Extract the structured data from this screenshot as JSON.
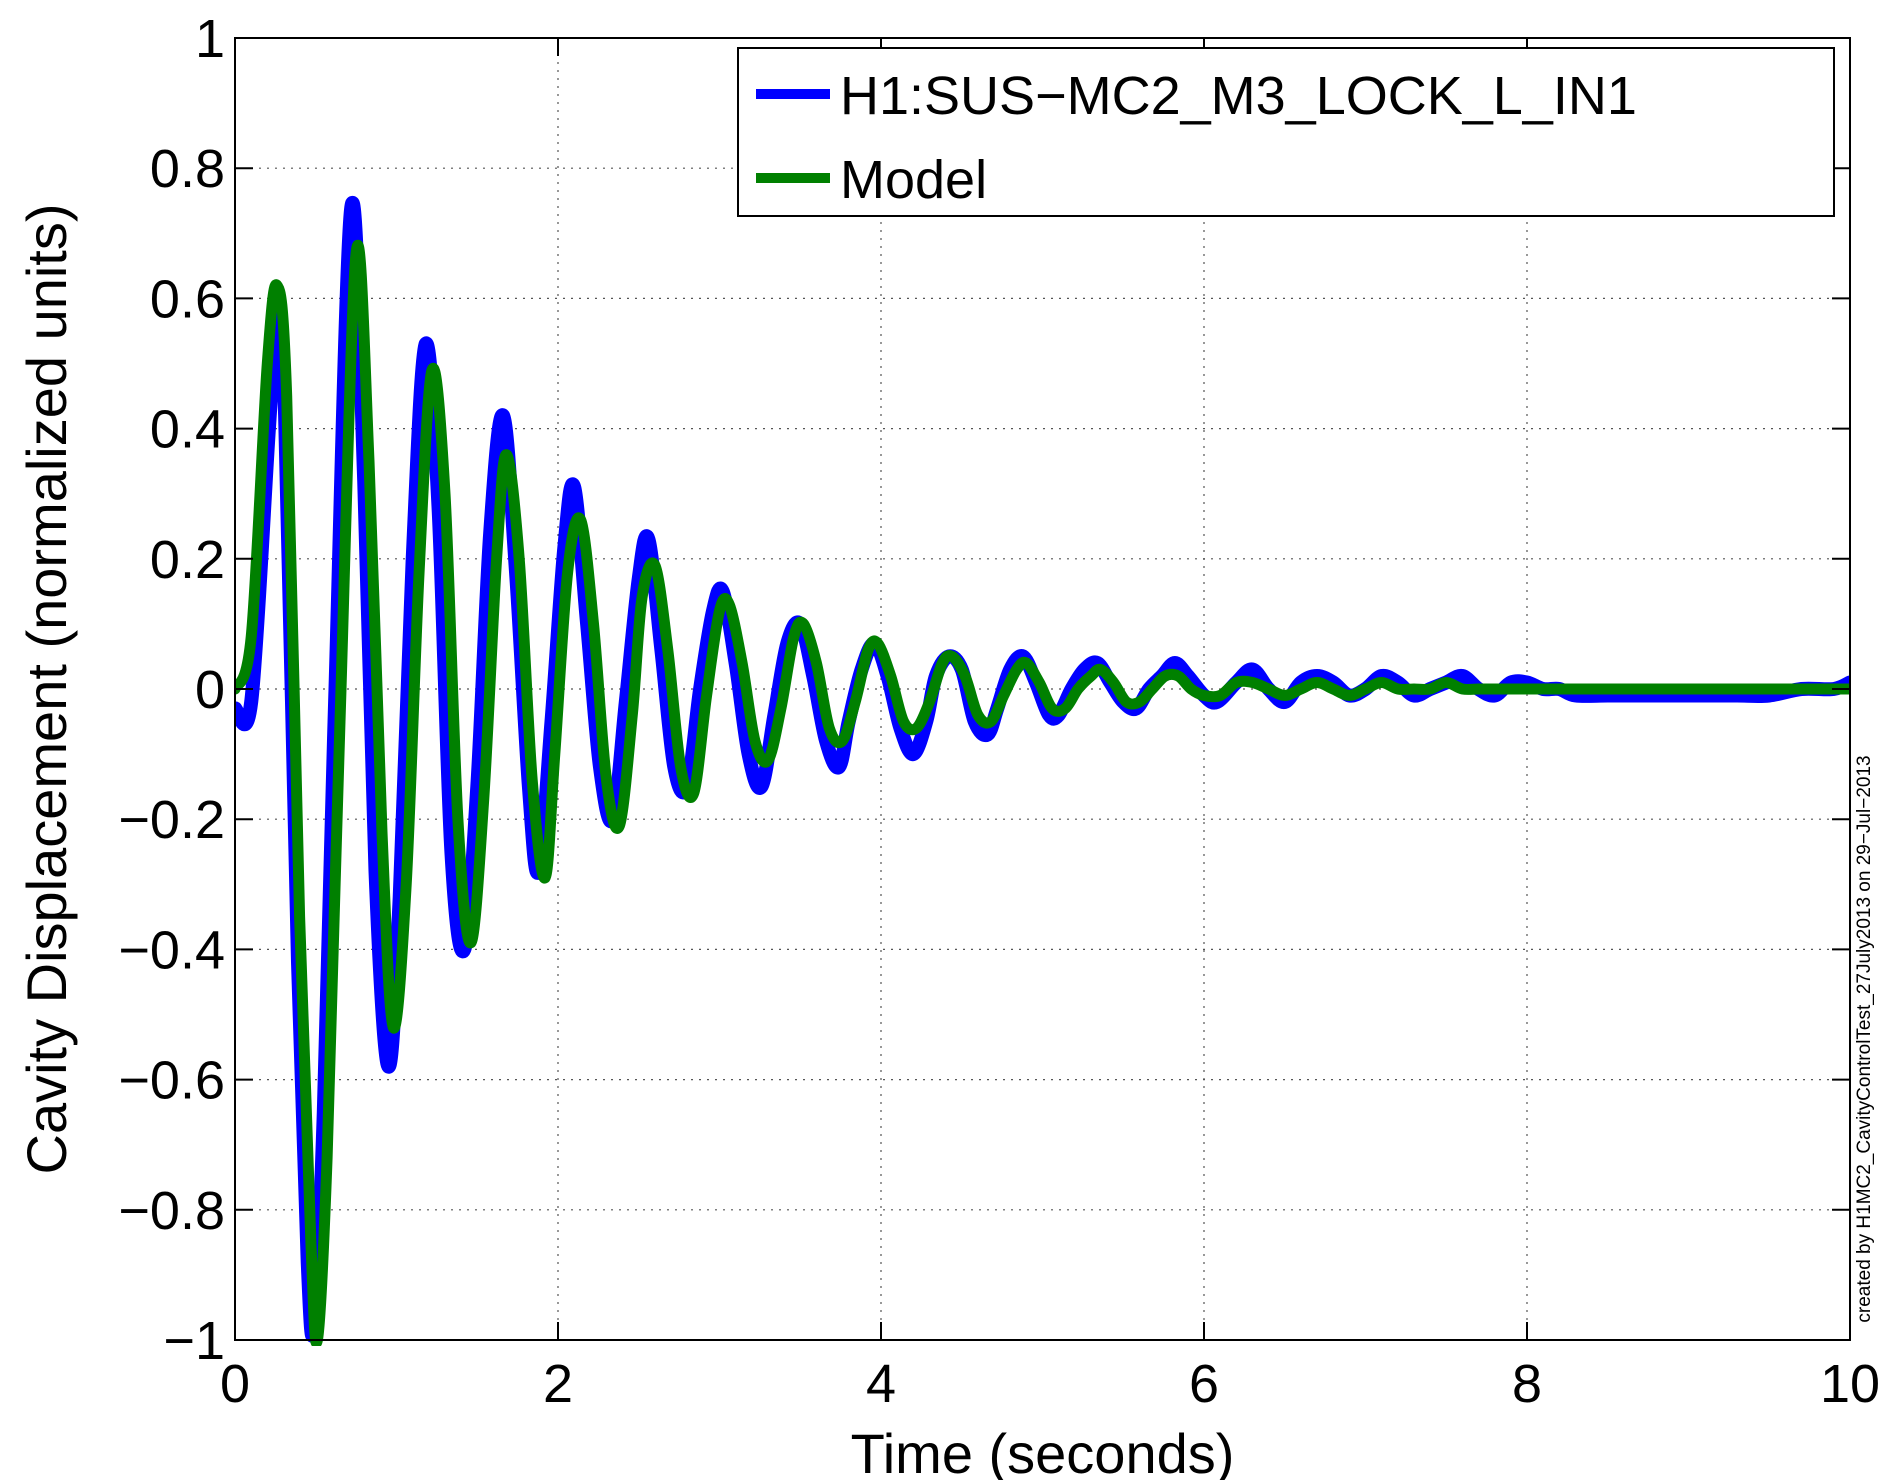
{
  "chart_data": {
    "type": "line",
    "title": "",
    "xlabel": "Time (seconds)",
    "ylabel": "Cavity Displacement (normalized units)",
    "xlim": [
      0,
      10
    ],
    "ylim": [
      -1,
      1
    ],
    "xticks": [
      0,
      2,
      4,
      6,
      8,
      10
    ],
    "xtick_labels": [
      "0",
      "2",
      "4",
      "6",
      "8",
      "10"
    ],
    "yticks": [
      -1,
      -0.8,
      -0.6,
      -0.4,
      -0.2,
      0,
      0.2,
      0.4,
      0.6,
      0.8,
      1
    ],
    "ytick_labels": [
      "−1",
      "−0.8",
      "−0.6",
      "−0.4",
      "−0.2",
      "0",
      "0.2",
      "0.4",
      "0.6",
      "0.8",
      "1"
    ],
    "grid": true,
    "legend_position": "top-right",
    "annotation": "created by H1MC2_CavityControlTest_27July2013 on 29−Jul−2013",
    "series": [
      {
        "name": "H1:SUS−MC2_M3_LOCK_L_IN1",
        "color": "#0000ff",
        "x": [
          0.0,
          0.1,
          0.21,
          0.26,
          0.31,
          0.39,
          0.45,
          0.49,
          0.55,
          0.62,
          0.72,
          0.8,
          0.87,
          0.95,
          1.02,
          1.1,
          1.18,
          1.26,
          1.34,
          1.42,
          1.5,
          1.58,
          1.66,
          1.74,
          1.82,
          1.88,
          1.96,
          2.04,
          2.1,
          2.18,
          2.26,
          2.34,
          2.42,
          2.5,
          2.56,
          2.64,
          2.72,
          2.8,
          2.88,
          2.96,
          3.02,
          3.1,
          3.18,
          3.26,
          3.34,
          3.42,
          3.5,
          3.58,
          3.66,
          3.74,
          3.8,
          3.88,
          3.96,
          4.04,
          4.12,
          4.2,
          4.28,
          4.34,
          4.42,
          4.5,
          4.58,
          4.66,
          4.72,
          4.8,
          4.88,
          4.96,
          5.04,
          5.1,
          5.18,
          5.26,
          5.34,
          5.42,
          5.5,
          5.58,
          5.66,
          5.74,
          5.82,
          5.9,
          6.0,
          6.08,
          6.2,
          6.3,
          6.4,
          6.5,
          6.6,
          6.7,
          6.8,
          6.9,
          7.0,
          7.1,
          7.2,
          7.3,
          7.4,
          7.5,
          7.6,
          7.7,
          7.8,
          7.9,
          8.0,
          8.1,
          8.2,
          8.3,
          8.5,
          8.7,
          8.9,
          9.1,
          9.3,
          9.5,
          9.7,
          9.9,
          10.0
        ],
        "values": [
          -0.03,
          -0.02,
          0.4,
          0.57,
          0.42,
          -0.42,
          -0.88,
          -0.98,
          -0.65,
          -0.02,
          0.74,
          0.32,
          -0.28,
          -0.58,
          -0.32,
          0.2,
          0.53,
          0.28,
          -0.25,
          -0.4,
          -0.15,
          0.24,
          0.42,
          0.18,
          -0.15,
          -0.28,
          -0.05,
          0.22,
          0.31,
          0.1,
          -0.12,
          -0.2,
          -0.02,
          0.17,
          0.23,
          0.06,
          -0.12,
          -0.15,
          0.0,
          0.12,
          0.15,
          0.04,
          -0.1,
          -0.15,
          -0.04,
          0.07,
          0.1,
          0.02,
          -0.08,
          -0.12,
          -0.05,
          0.03,
          0.07,
          0.02,
          -0.06,
          -0.1,
          -0.05,
          0.02,
          0.05,
          0.03,
          -0.05,
          -0.07,
          -0.03,
          0.03,
          0.05,
          0.01,
          -0.04,
          -0.04,
          0.0,
          0.03,
          0.04,
          0.01,
          -0.02,
          -0.03,
          0.0,
          0.02,
          0.04,
          0.02,
          -0.01,
          -0.02,
          0.01,
          0.03,
          0.0,
          -0.02,
          0.01,
          0.02,
          0.01,
          -0.01,
          0.0,
          0.02,
          0.01,
          -0.01,
          0.0,
          0.01,
          0.02,
          0.0,
          -0.01,
          0.01,
          0.01,
          0.0,
          0.0,
          -0.01,
          -0.01,
          -0.01,
          -0.01,
          -0.01,
          -0.01,
          -0.01,
          0.0,
          0.0,
          0.01
        ]
      },
      {
        "name": "Model",
        "color": "#008000",
        "x": [
          0.0,
          0.1,
          0.2,
          0.26,
          0.32,
          0.4,
          0.47,
          0.51,
          0.57,
          0.65,
          0.75,
          0.83,
          0.91,
          0.98,
          1.06,
          1.14,
          1.22,
          1.3,
          1.38,
          1.46,
          1.54,
          1.62,
          1.68,
          1.76,
          1.84,
          1.92,
          1.98,
          2.06,
          2.14,
          2.22,
          2.3,
          2.38,
          2.46,
          2.52,
          2.6,
          2.68,
          2.76,
          2.84,
          2.92,
          3.0,
          3.06,
          3.14,
          3.22,
          3.3,
          3.38,
          3.46,
          3.52,
          3.6,
          3.68,
          3.76,
          3.84,
          3.92,
          3.98,
          4.06,
          4.14,
          4.22,
          4.3,
          4.38,
          4.44,
          4.52,
          4.6,
          4.68,
          4.76,
          4.84,
          4.9,
          4.98,
          5.06,
          5.14,
          5.22,
          5.3,
          5.36,
          5.44,
          5.52,
          5.6,
          5.68,
          5.76,
          5.84,
          5.92,
          6.0,
          6.1,
          6.2,
          6.3,
          6.4,
          6.5,
          6.6,
          6.7,
          6.8,
          6.9,
          7.0,
          7.1,
          7.2,
          7.3,
          7.4,
          7.5,
          7.6,
          7.7,
          7.8,
          7.9,
          8.0,
          8.2,
          8.4,
          8.6,
          8.8,
          9.0,
          9.2,
          9.4,
          9.6,
          9.8,
          10.0
        ],
        "values": [
          0.0,
          0.08,
          0.5,
          0.62,
          0.45,
          -0.35,
          -0.85,
          -1.0,
          -0.72,
          -0.05,
          0.67,
          0.35,
          -0.22,
          -0.52,
          -0.3,
          0.18,
          0.49,
          0.3,
          -0.2,
          -0.39,
          -0.17,
          0.2,
          0.36,
          0.2,
          -0.14,
          -0.29,
          -0.1,
          0.18,
          0.26,
          0.1,
          -0.14,
          -0.21,
          -0.04,
          0.14,
          0.19,
          0.06,
          -0.12,
          -0.16,
          -0.01,
          0.12,
          0.13,
          0.04,
          -0.08,
          -0.11,
          -0.03,
          0.08,
          0.1,
          0.04,
          -0.06,
          -0.08,
          -0.02,
          0.06,
          0.07,
          0.02,
          -0.05,
          -0.06,
          -0.02,
          0.04,
          0.05,
          0.02,
          -0.04,
          -0.05,
          -0.01,
          0.03,
          0.04,
          0.01,
          -0.03,
          -0.03,
          0.0,
          0.02,
          0.03,
          0.01,
          -0.02,
          -0.02,
          0.0,
          0.02,
          0.02,
          0.0,
          -0.01,
          -0.01,
          0.01,
          0.01,
          0.0,
          -0.01,
          0.0,
          0.01,
          0.0,
          -0.01,
          0.0,
          0.01,
          0.0,
          0.0,
          0.0,
          0.01,
          0.0,
          0.0,
          0.0,
          0.0,
          0.0,
          0.0,
          0.0,
          0.0,
          0.0,
          0.0,
          0.0,
          0.0,
          0.0,
          0.0,
          0.0
        ]
      }
    ]
  }
}
